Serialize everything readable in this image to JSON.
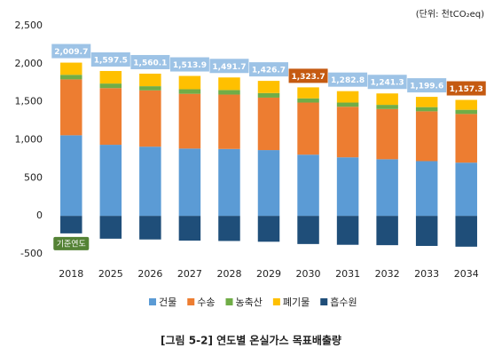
{
  "chart_data": {
    "type": "bar",
    "stacked": true,
    "unit_note": "(단위: 천tCO₂eq)",
    "caption": "[그림 5-2] 연도별 온실가스 목표배출량",
    "categories": [
      "2018",
      "2025",
      "2026",
      "2027",
      "2028",
      "2029",
      "2030",
      "2031",
      "2032",
      "2033",
      "2034"
    ],
    "series": [
      {
        "name": "건물",
        "color": "#5b9bd5",
        "values": [
          1060,
          935,
          910,
          885,
          880,
          865,
          805,
          770,
          745,
          720,
          700
        ]
      },
      {
        "name": "수송",
        "color": "#ed7d31",
        "values": [
          735,
          745,
          740,
          720,
          715,
          690,
          685,
          665,
          660,
          655,
          640
        ]
      },
      {
        "name": "농축산",
        "color": "#70ad47",
        "values": [
          60,
          60,
          55,
          60,
          60,
          60,
          55,
          55,
          55,
          55,
          55
        ]
      },
      {
        "name": "폐기물",
        "color": "#ffc000",
        "values": [
          160,
          165,
          165,
          175,
          165,
          160,
          145,
          150,
          150,
          135,
          130
        ]
      },
      {
        "name": "흡수원",
        "color": "#1f4e79",
        "values": [
          -230,
          -300,
          -310,
          -325,
          -330,
          -340,
          -370,
          -380,
          -385,
          -395,
          -405
        ]
      }
    ],
    "annotations": [
      "2,009.7",
      "1,597.5",
      "1,560.1",
      "1,513.9",
      "1,491.7",
      "1,426.7",
      "1,323.7",
      "1,282.8",
      "1,241.3",
      "1,199.6",
      "1,157.3"
    ],
    "annotation_colors": [
      "#9dc3e6",
      "#9dc3e6",
      "#9dc3e6",
      "#9dc3e6",
      "#9dc3e6",
      "#9dc3e6",
      "#c55a11",
      "#9dc3e6",
      "#9dc3e6",
      "#9dc3e6",
      "#c55a11"
    ],
    "base_year_label": "기준연도",
    "ylim": [
      -500,
      2500
    ],
    "yticks": [
      -500,
      0,
      500,
      {
        "value": 1000,
        "label": "1,000"
      },
      {
        "value": 1500,
        "label": "1,500"
      },
      {
        "value": 2000,
        "label": "2,000"
      },
      {
        "value": 2500,
        "label": "2,500"
      }
    ]
  }
}
